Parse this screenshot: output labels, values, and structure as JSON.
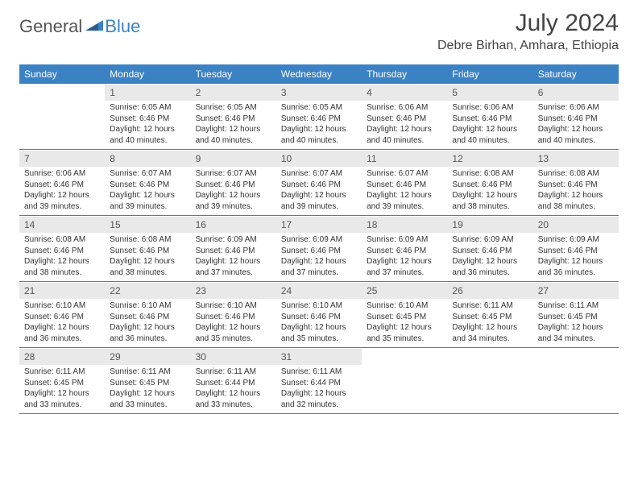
{
  "brand": {
    "part1": "General",
    "part2": "Blue"
  },
  "title": "July 2024",
  "location": "Debre Birhan, Amhara, Ethiopia",
  "dayNames": [
    "Sunday",
    "Monday",
    "Tuesday",
    "Wednesday",
    "Thursday",
    "Friday",
    "Saturday"
  ],
  "colors": {
    "headerBar": "#3b82c4",
    "dayNumBg": "#e9e9e9",
    "text": "#333333",
    "ruleLine": "#3b82c4"
  },
  "fonts": {
    "title_size_pt": 30,
    "location_size_pt": 16,
    "dayhead_size_pt": 12,
    "body_size_pt": 10
  },
  "weeks": [
    [
      null,
      {
        "n": "1",
        "sr": "6:05 AM",
        "ss": "6:46 PM",
        "dl": "12 hours and 40 minutes."
      },
      {
        "n": "2",
        "sr": "6:05 AM",
        "ss": "6:46 PM",
        "dl": "12 hours and 40 minutes."
      },
      {
        "n": "3",
        "sr": "6:05 AM",
        "ss": "6:46 PM",
        "dl": "12 hours and 40 minutes."
      },
      {
        "n": "4",
        "sr": "6:06 AM",
        "ss": "6:46 PM",
        "dl": "12 hours and 40 minutes."
      },
      {
        "n": "5",
        "sr": "6:06 AM",
        "ss": "6:46 PM",
        "dl": "12 hours and 40 minutes."
      },
      {
        "n": "6",
        "sr": "6:06 AM",
        "ss": "6:46 PM",
        "dl": "12 hours and 40 minutes."
      }
    ],
    [
      {
        "n": "7",
        "sr": "6:06 AM",
        "ss": "6:46 PM",
        "dl": "12 hours and 39 minutes."
      },
      {
        "n": "8",
        "sr": "6:07 AM",
        "ss": "6:46 PM",
        "dl": "12 hours and 39 minutes."
      },
      {
        "n": "9",
        "sr": "6:07 AM",
        "ss": "6:46 PM",
        "dl": "12 hours and 39 minutes."
      },
      {
        "n": "10",
        "sr": "6:07 AM",
        "ss": "6:46 PM",
        "dl": "12 hours and 39 minutes."
      },
      {
        "n": "11",
        "sr": "6:07 AM",
        "ss": "6:46 PM",
        "dl": "12 hours and 39 minutes."
      },
      {
        "n": "12",
        "sr": "6:08 AM",
        "ss": "6:46 PM",
        "dl": "12 hours and 38 minutes."
      },
      {
        "n": "13",
        "sr": "6:08 AM",
        "ss": "6:46 PM",
        "dl": "12 hours and 38 minutes."
      }
    ],
    [
      {
        "n": "14",
        "sr": "6:08 AM",
        "ss": "6:46 PM",
        "dl": "12 hours and 38 minutes."
      },
      {
        "n": "15",
        "sr": "6:08 AM",
        "ss": "6:46 PM",
        "dl": "12 hours and 38 minutes."
      },
      {
        "n": "16",
        "sr": "6:09 AM",
        "ss": "6:46 PM",
        "dl": "12 hours and 37 minutes."
      },
      {
        "n": "17",
        "sr": "6:09 AM",
        "ss": "6:46 PM",
        "dl": "12 hours and 37 minutes."
      },
      {
        "n": "18",
        "sr": "6:09 AM",
        "ss": "6:46 PM",
        "dl": "12 hours and 37 minutes."
      },
      {
        "n": "19",
        "sr": "6:09 AM",
        "ss": "6:46 PM",
        "dl": "12 hours and 36 minutes."
      },
      {
        "n": "20",
        "sr": "6:09 AM",
        "ss": "6:46 PM",
        "dl": "12 hours and 36 minutes."
      }
    ],
    [
      {
        "n": "21",
        "sr": "6:10 AM",
        "ss": "6:46 PM",
        "dl": "12 hours and 36 minutes."
      },
      {
        "n": "22",
        "sr": "6:10 AM",
        "ss": "6:46 PM",
        "dl": "12 hours and 36 minutes."
      },
      {
        "n": "23",
        "sr": "6:10 AM",
        "ss": "6:46 PM",
        "dl": "12 hours and 35 minutes."
      },
      {
        "n": "24",
        "sr": "6:10 AM",
        "ss": "6:46 PM",
        "dl": "12 hours and 35 minutes."
      },
      {
        "n": "25",
        "sr": "6:10 AM",
        "ss": "6:45 PM",
        "dl": "12 hours and 35 minutes."
      },
      {
        "n": "26",
        "sr": "6:11 AM",
        "ss": "6:45 PM",
        "dl": "12 hours and 34 minutes."
      },
      {
        "n": "27",
        "sr": "6:11 AM",
        "ss": "6:45 PM",
        "dl": "12 hours and 34 minutes."
      }
    ],
    [
      {
        "n": "28",
        "sr": "6:11 AM",
        "ss": "6:45 PM",
        "dl": "12 hours and 33 minutes."
      },
      {
        "n": "29",
        "sr": "6:11 AM",
        "ss": "6:45 PM",
        "dl": "12 hours and 33 minutes."
      },
      {
        "n": "30",
        "sr": "6:11 AM",
        "ss": "6:44 PM",
        "dl": "12 hours and 33 minutes."
      },
      {
        "n": "31",
        "sr": "6:11 AM",
        "ss": "6:44 PM",
        "dl": "12 hours and 32 minutes."
      },
      null,
      null,
      null
    ]
  ],
  "labels": {
    "sunrise": "Sunrise: ",
    "sunset": "Sunset: ",
    "daylight": "Daylight: "
  }
}
